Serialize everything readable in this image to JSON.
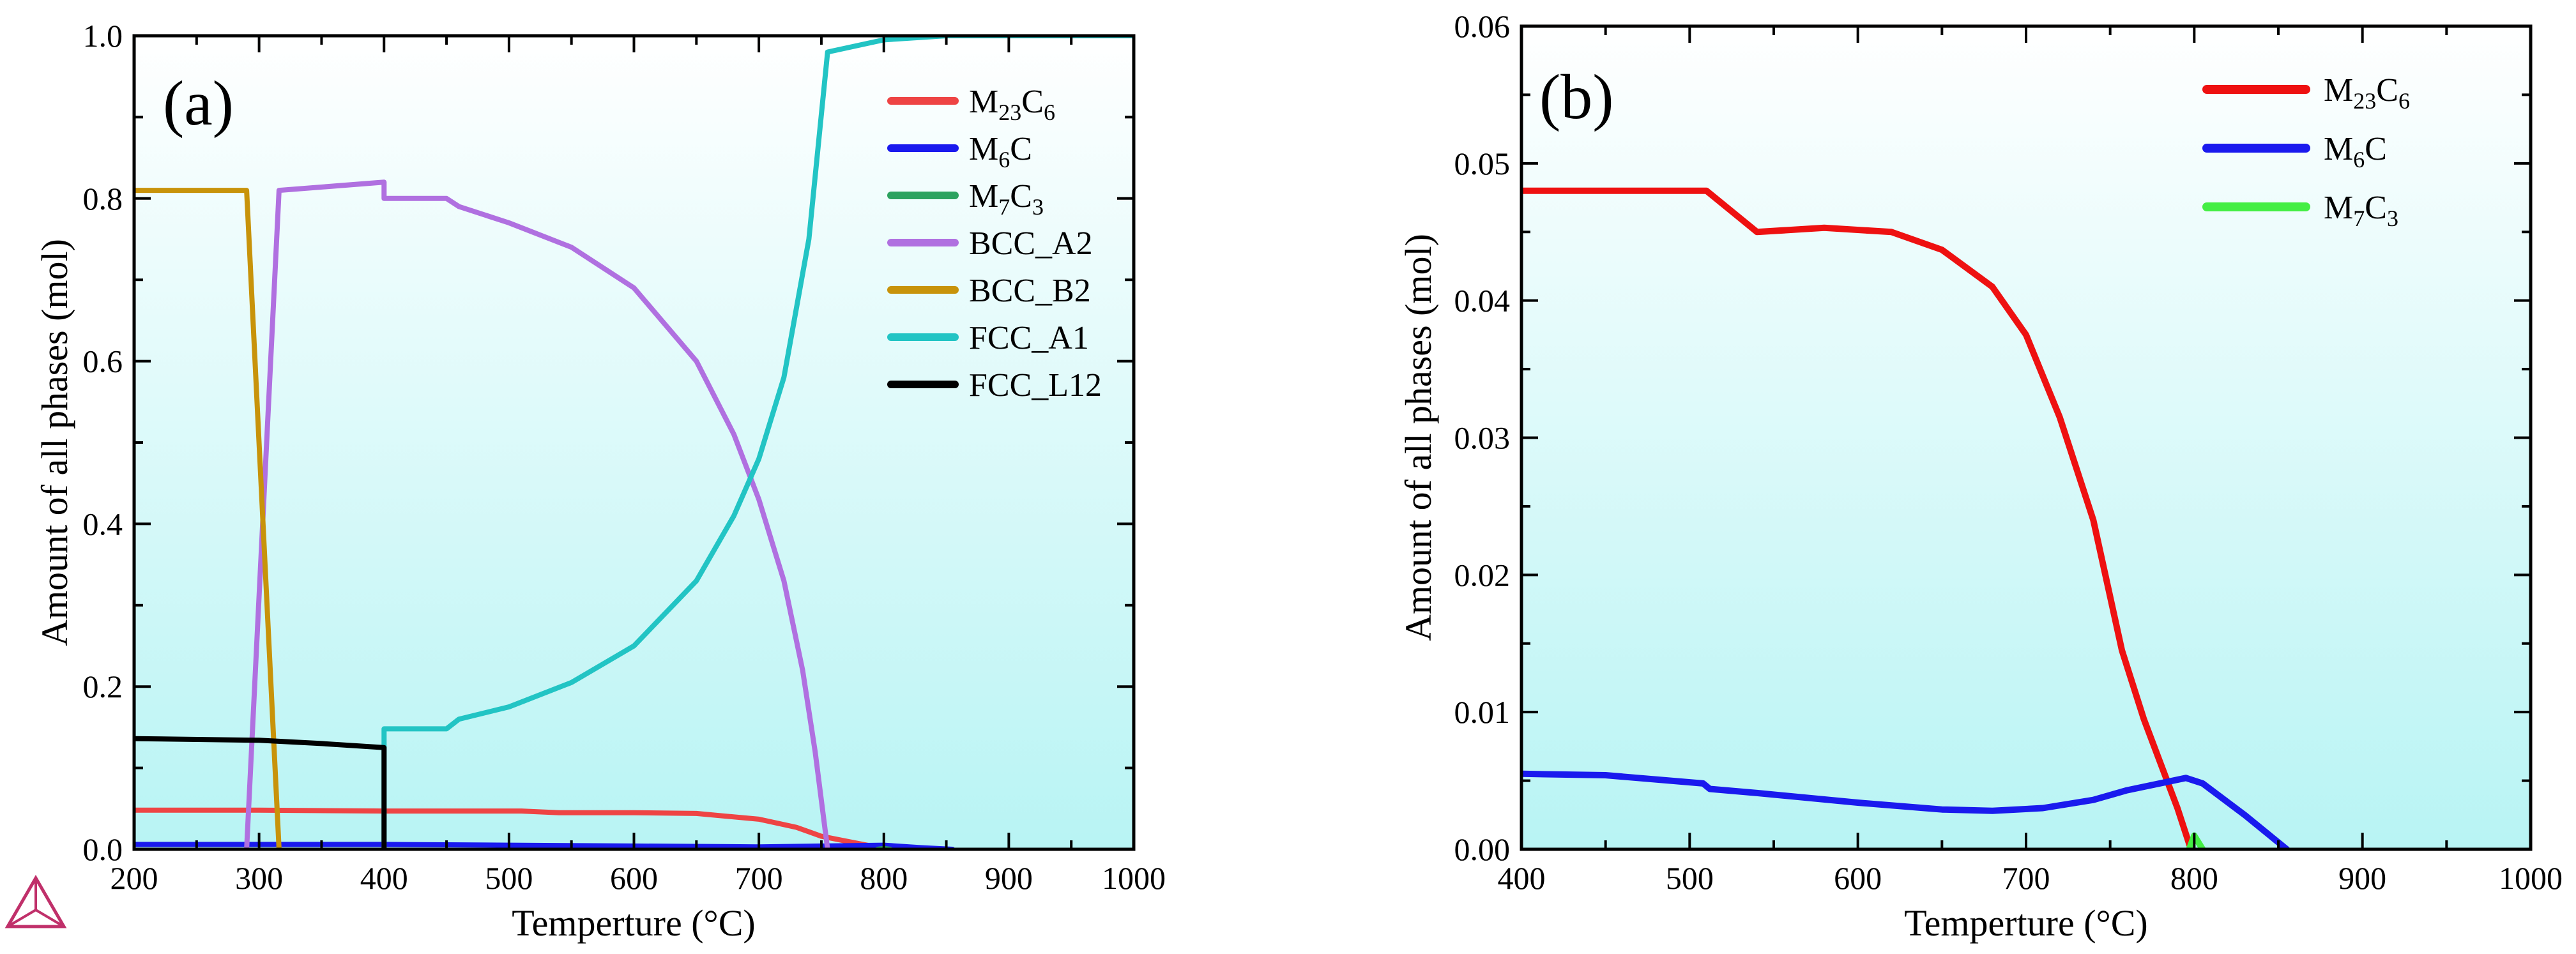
{
  "chart_data": [
    {
      "panel": "(a)",
      "type": "line",
      "xlabel": "Temperture (°C)",
      "ylabel": "Amount of all phases (mol)",
      "xlim": [
        200,
        1000
      ],
      "ylim": [
        0,
        1.0
      ],
      "xticks": [
        200,
        300,
        400,
        500,
        600,
        700,
        800,
        900,
        1000
      ],
      "yticks": [
        0.0,
        0.2,
        0.4,
        0.6,
        0.8,
        1.0
      ],
      "ytick_decimals": 1,
      "grid": false,
      "background": "gradient white-to-cyan",
      "legend_position": "top-right",
      "series": [
        {
          "name": "M23C6",
          "label_main": "M",
          "sub1": "23",
          "mid": "C",
          "sub2": "6",
          "color": "#ee4444",
          "points": [
            [
              200,
              0.048
            ],
            [
              300,
              0.048
            ],
            [
              400,
              0.047
            ],
            [
              500,
              0.047
            ],
            [
              510,
              0.047
            ],
            [
              540,
              0.045
            ],
            [
              600,
              0.045
            ],
            [
              650,
              0.044
            ],
            [
              700,
              0.037
            ],
            [
              730,
              0.027
            ],
            [
              750,
              0.016
            ],
            [
              770,
              0.01
            ],
            [
              790,
              0.004
            ],
            [
              800,
              0.0
            ]
          ]
        },
        {
          "name": "M6C",
          "label_main": "M",
          "sub1": "6",
          "mid": "C",
          "sub2": "",
          "color": "#1a1aee",
          "points": [
            [
              200,
              0.006
            ],
            [
              300,
              0.006
            ],
            [
              400,
              0.006
            ],
            [
              500,
              0.005
            ],
            [
              600,
              0.004
            ],
            [
              700,
              0.003
            ],
            [
              750,
              0.004
            ],
            [
              800,
              0.005
            ],
            [
              830,
              0.002
            ],
            [
              855,
              0.0
            ]
          ]
        },
        {
          "name": "M7C3",
          "label_main": "M",
          "sub1": "7",
          "mid": "C",
          "sub2": "3",
          "color": "#2ca25f",
          "points": [
            [
              795,
              0.0
            ],
            [
              800,
              0.001
            ],
            [
              805,
              0.0
            ]
          ]
        },
        {
          "name": "BCC_A2",
          "label_main": "BCC_A2",
          "sub1": "",
          "mid": "",
          "sub2": "",
          "color": "#b070e0",
          "points": [
            [
              290,
              0.0
            ],
            [
              316,
              0.81
            ],
            [
              400,
              0.82
            ],
            [
              400,
              0.8
            ],
            [
              450,
              0.8
            ],
            [
              460,
              0.79
            ],
            [
              500,
              0.77
            ],
            [
              550,
              0.74
            ],
            [
              600,
              0.69
            ],
            [
              650,
              0.6
            ],
            [
              680,
              0.51
            ],
            [
              700,
              0.43
            ],
            [
              720,
              0.33
            ],
            [
              735,
              0.22
            ],
            [
              745,
              0.12
            ],
            [
              755,
              0.0
            ]
          ]
        },
        {
          "name": "BCC_B2",
          "label_main": "BCC_B2",
          "sub1": "",
          "mid": "",
          "sub2": "",
          "color": "#c8930a",
          "points": [
            [
              200,
              0.81
            ],
            [
              290,
              0.81
            ],
            [
              316,
              0.0
            ]
          ]
        },
        {
          "name": "FCC_A1",
          "label_main": "FCC_A1",
          "sub1": "",
          "mid": "",
          "sub2": "",
          "color": "#22c4c4",
          "points": [
            [
              400,
              0.0
            ],
            [
              400,
              0.148
            ],
            [
              450,
              0.148
            ],
            [
              460,
              0.16
            ],
            [
              500,
              0.175
            ],
            [
              550,
              0.205
            ],
            [
              600,
              0.25
            ],
            [
              650,
              0.33
            ],
            [
              680,
              0.41
            ],
            [
              700,
              0.48
            ],
            [
              720,
              0.58
            ],
            [
              740,
              0.75
            ],
            [
              755,
              0.98
            ],
            [
              800,
              0.995
            ],
            [
              850,
              1.0
            ],
            [
              1000,
              1.0
            ]
          ]
        },
        {
          "name": "FCC_L12",
          "label_main": "FCC_L12",
          "sub1": "",
          "mid": "",
          "sub2": "",
          "color": "#000000",
          "points": [
            [
              200,
              0.136
            ],
            [
              300,
              0.134
            ],
            [
              350,
              0.13
            ],
            [
              400,
              0.125
            ],
            [
              400,
              0.0
            ]
          ]
        }
      ]
    },
    {
      "panel": "(b)",
      "type": "line",
      "xlabel": "Temperture (°C)",
      "ylabel": "Amount of all phases (mol)",
      "xlim": [
        400,
        1000
      ],
      "ylim": [
        0,
        0.06
      ],
      "xticks": [
        400,
        500,
        600,
        700,
        800,
        900,
        1000
      ],
      "yticks": [
        0.0,
        0.01,
        0.02,
        0.03,
        0.04,
        0.05,
        0.06
      ],
      "ytick_decimals": 2,
      "grid": false,
      "background": "gradient white-to-cyan",
      "legend_position": "top-right",
      "series": [
        {
          "name": "M23C6",
          "label_main": "M",
          "sub1": "23",
          "mid": "C",
          "sub2": "6",
          "color": "#ee1111",
          "points": [
            [
              400,
              0.048
            ],
            [
              450,
              0.048
            ],
            [
              510,
              0.048
            ],
            [
              540,
              0.045
            ],
            [
              580,
              0.0453
            ],
            [
              620,
              0.045
            ],
            [
              650,
              0.0437
            ],
            [
              680,
              0.041
            ],
            [
              700,
              0.0375
            ],
            [
              720,
              0.0315
            ],
            [
              740,
              0.024
            ],
            [
              757,
              0.0145
            ],
            [
              770,
              0.0095
            ],
            [
              790,
              0.003
            ],
            [
              798,
              0.0
            ]
          ]
        },
        {
          "name": "M6C",
          "label_main": "M",
          "sub1": "6",
          "mid": "C",
          "sub2": "",
          "color": "#1a1aee",
          "points": [
            [
              400,
              0.0055
            ],
            [
              450,
              0.0054
            ],
            [
              508,
              0.0048
            ],
            [
              512,
              0.0044
            ],
            [
              540,
              0.0041
            ],
            [
              600,
              0.0034
            ],
            [
              650,
              0.0029
            ],
            [
              680,
              0.0028
            ],
            [
              710,
              0.003
            ],
            [
              740,
              0.0036
            ],
            [
              760,
              0.0043
            ],
            [
              795,
              0.0052
            ],
            [
              805,
              0.0048
            ],
            [
              830,
              0.0025
            ],
            [
              855,
              0.0
            ]
          ]
        },
        {
          "name": "M7C3",
          "label_main": "M",
          "sub1": "7",
          "mid": "C",
          "sub2": "3",
          "color": "#44ee44",
          "points": [
            [
              797,
              0.0
            ],
            [
              800,
              0.001
            ],
            [
              805,
              0.0
            ]
          ]
        }
      ]
    }
  ]
}
